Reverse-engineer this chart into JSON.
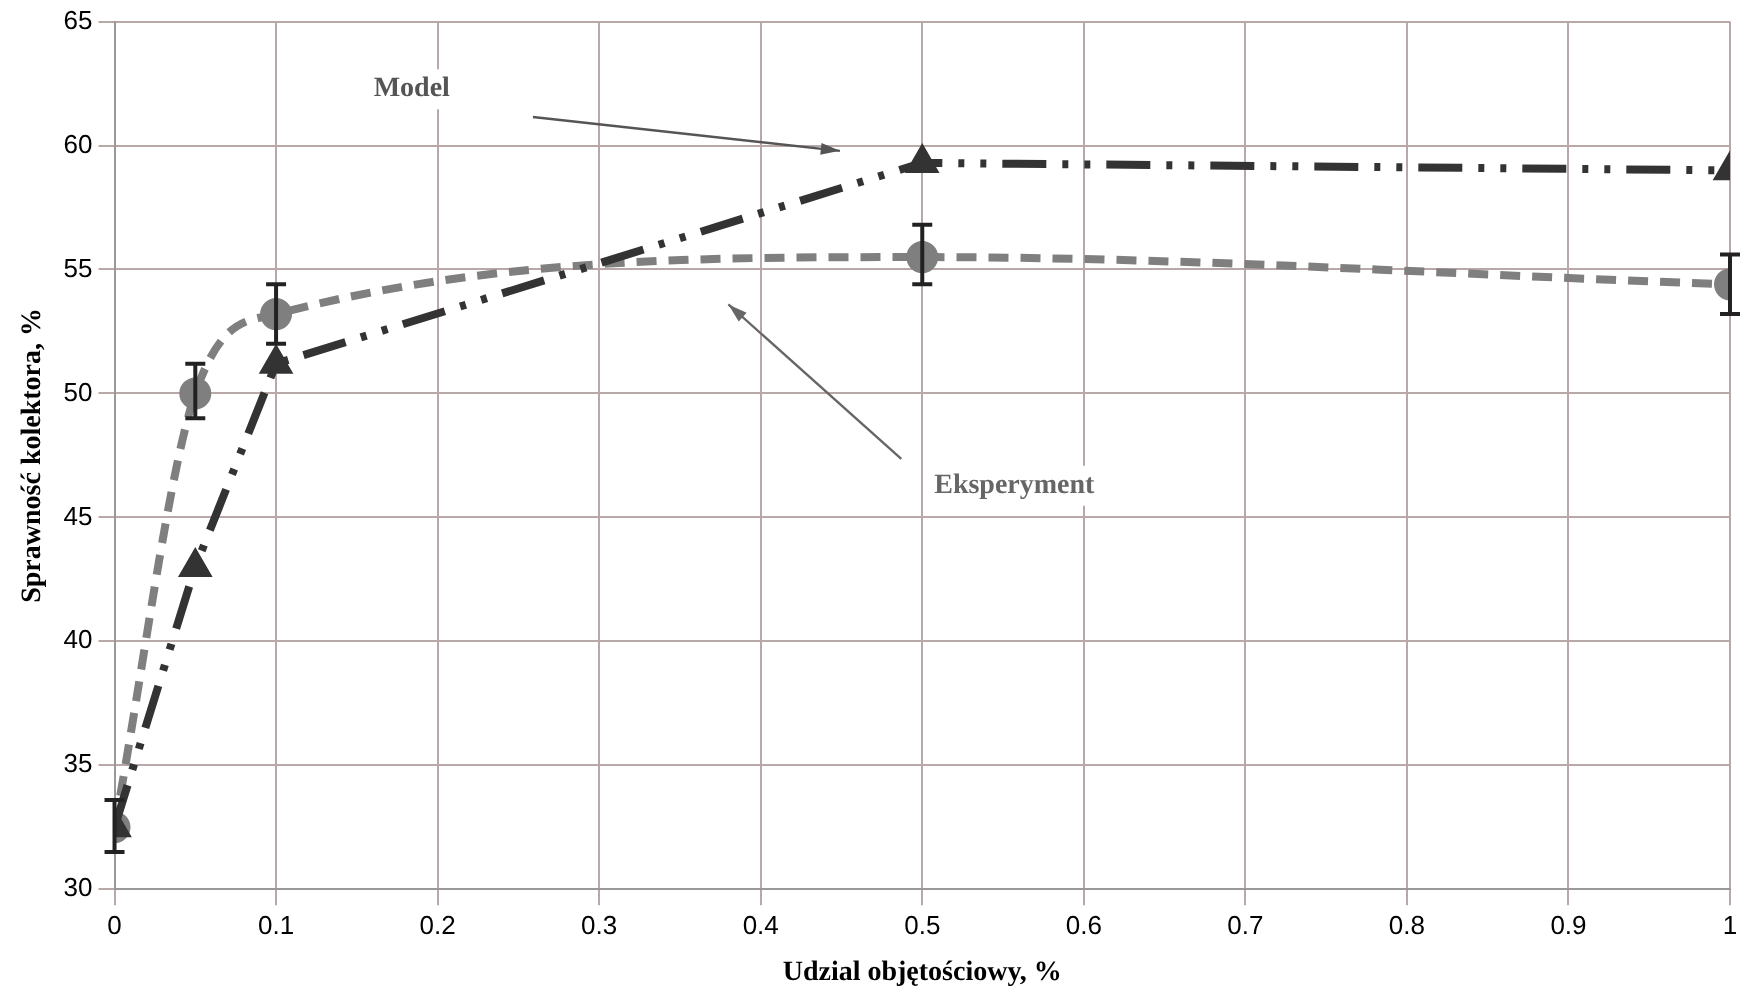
{
  "chart_data": {
    "type": "line",
    "xlabel": "Udzial objętościowy, %",
    "ylabel": "Sprawność kolektora, %",
    "xlim": [
      0,
      1
    ],
    "xticks": [
      0,
      0.1,
      0.2,
      0.3,
      0.4,
      0.5,
      0.6,
      0.7,
      0.8,
      0.9,
      1
    ],
    "ylim": [
      30,
      65
    ],
    "yticks": [
      30,
      35,
      40,
      45,
      50,
      55,
      60,
      65
    ],
    "grid": true,
    "legend": false,
    "x": [
      0,
      0.05,
      0.1,
      0.5,
      1
    ],
    "series": [
      {
        "color": "#333333",
        "values": [
          32.5,
          43,
          51.2,
          59.3,
          59
        ],
        "marker": "triangle",
        "line_style": "dashed"
      },
      {
        "color": "#7f7f7f",
        "values": [
          32.5,
          50,
          53.2,
          55.5,
          54.4
        ],
        "marker": "circle",
        "line_style": "dashed",
        "errors": [
          [
            31.5,
            33.6
          ],
          [
            49,
            51.2
          ],
          [
            52,
            54.4
          ],
          [
            54.4,
            56.8
          ],
          [
            53.2,
            55.6
          ]
        ]
      }
    ],
    "annotations": [
      "Model",
      "Eksperyment"
    ]
  }
}
